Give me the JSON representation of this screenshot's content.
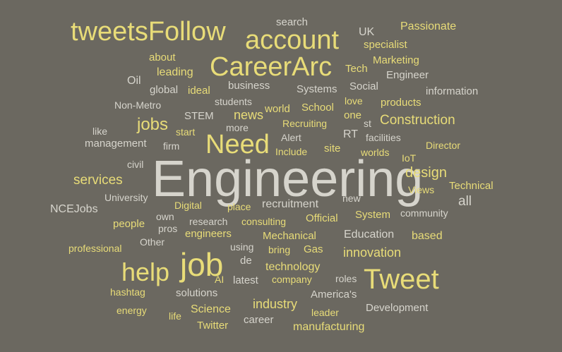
{
  "colors": {
    "background": "#6b6860",
    "yellow": "#e8dc78",
    "gray": "#d6d4cc"
  },
  "words": [
    "Engineering",
    "Tweet",
    "job",
    "help",
    "CareerArc",
    "account",
    "tweetsFollow",
    "Need",
    "jobs",
    "design",
    "services",
    "Construction",
    "news",
    "all",
    "innovation",
    "industry",
    "technology",
    "manufacturing",
    "search",
    "UK",
    "Passionate",
    "specialist",
    "about",
    "Marketing",
    "Tech",
    "leading",
    "Engineer",
    "Oil",
    "business",
    "Social",
    "global",
    "ideal",
    "Systems",
    "information",
    "students",
    "love",
    "products",
    "Non-Metro",
    "world",
    "School",
    "STEM",
    "one",
    "st",
    "Recruiting",
    "like",
    "start",
    "more",
    "Alert",
    "RT",
    "facilities",
    "management",
    "firm",
    "site",
    "Director",
    "Include",
    "worlds",
    "IoT",
    "civil",
    "Technical",
    "Views",
    "University",
    "new",
    "NCEJobs",
    "own",
    "Digital",
    "place",
    "recruitment",
    "Official",
    "System",
    "community",
    "people",
    "pros",
    "research",
    "consulting",
    "engineers",
    "Mechanical",
    "Education",
    "based",
    "Other",
    "professional",
    "using",
    "bring",
    "Gas",
    "de",
    "AI",
    "latest",
    "company",
    "roles",
    "hashtag",
    "solutions",
    "America's",
    "energy",
    "Science",
    "leader",
    "Development",
    "life",
    "Twitter",
    "career"
  ]
}
